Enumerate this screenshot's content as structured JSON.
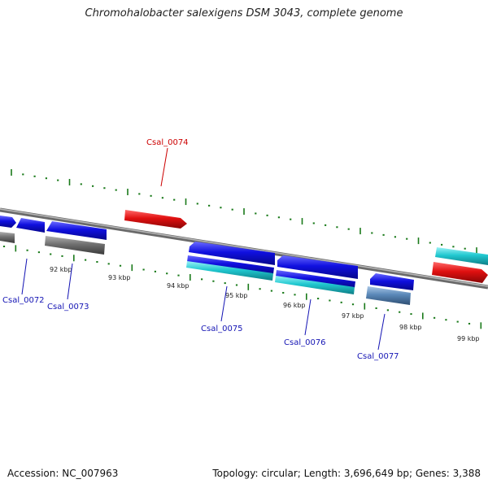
{
  "title": "Chromohalobacter salexigens DSM 3043, complete genome",
  "accession": "Accession: NC_007963",
  "stats": "Topology: circular; Length: 3,696,649 bp; Genes: 3,388",
  "colors": {
    "background": "#ffffff",
    "backbone": "#808080",
    "tick": "#1a7a1a",
    "gene_blue": "#1010e0",
    "gene_red": "#e01010",
    "gene_cyan": "#20c8d0",
    "gene_gray": "#707070",
    "gene_steel": "#5a88b8",
    "label_blue": "#1414b4",
    "label_red": "#cc0000"
  },
  "scale_labels": [
    "92 kbp",
    "93 kbp",
    "94 kbp",
    "95 kbp",
    "96 kbp",
    "97 kbp",
    "98 kbp",
    "99 kbp"
  ],
  "gene_labels": [
    {
      "text": "Csal_0072",
      "color": "blue"
    },
    {
      "text": "Csal_0073",
      "color": "blue"
    },
    {
      "text": "Csal_0074",
      "color": "red"
    },
    {
      "text": "Csal_0075",
      "color": "blue"
    },
    {
      "text": "Csal_0076",
      "color": "blue"
    },
    {
      "text": "Csal_0077",
      "color": "blue"
    }
  ]
}
